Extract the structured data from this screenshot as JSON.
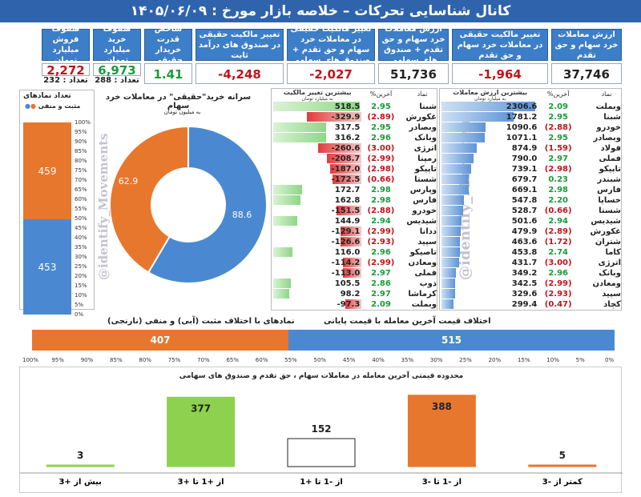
{
  "title": "کانال شناسایی تحرکات   –   خلاصه بازار مورخ : ۱۴۰۵/۰۶/۰۹",
  "kpis": [
    {
      "label": "ارزش معاملات خرد سهام و حق تقدم",
      "value": "37,746",
      "color": "#222"
    },
    {
      "label": "تغییر مالکیت حقیقی در معاملات خرد سهام و حق تقدم",
      "value": "-1,964",
      "color": "#c0141b"
    },
    {
      "label": "ارزش معاملات خرد سهام و حق تقدم + صندوق های سهامی",
      "value": "51,736",
      "color": "#222"
    },
    {
      "label": "تغییر مالکیت حقیقی در معاملات خرد سهام و حق تقدم + صندوق های سهامی",
      "value": "-2,027",
      "color": "#c0141b"
    },
    {
      "label": "تغییر مالکیت حقیقی در صندوق های درآمد ثابت",
      "value": "-4,248",
      "color": "#c0141b"
    },
    {
      "label": "شاخص قدرت خریدار حقیقی",
      "value": "1.41",
      "color": "#1a9a3a"
    },
    {
      "label": "صفوف خرید میلیارد تومان",
      "value": "6,973",
      "color": "#1a9a3a",
      "sub": "تعداد : 288"
    },
    {
      "label": "صفوف فروش میلیارد تومان",
      "value": "2,272",
      "color": "#c0141b",
      "sub": "تعداد : 232"
    }
  ],
  "count_box": {
    "title": "تعداد نمادهای",
    "legend": "مثبت و منفی",
    "axis": [
      "100%",
      "95%",
      "90%",
      "85%",
      "80%",
      "75%",
      "70%",
      "65%",
      "60%",
      "55%",
      "50%",
      "45%",
      "40%",
      "35%",
      "30%",
      "25%",
      "20%",
      "15%",
      "10%",
      "5%",
      "0%"
    ],
    "negative": 459,
    "positive": 453
  },
  "donut": {
    "title": "سرانه خرید\"حقیقی\" در معاملات خرد سهام",
    "subtitle": "به میلیون تومان",
    "blue_value": 88.6,
    "orange_value": 62.9
  },
  "watermark": "@identify_Movements",
  "table_ownership": {
    "header_name": "نماد",
    "header_pct": "%آخرین",
    "header_val": "بیشترین تغییر مالکیت",
    "header_unit": "به میلیارد تومان",
    "rows": [
      {
        "name": "شبنا",
        "pct": "2.95",
        "val": 518.5
      },
      {
        "name": "غکورش",
        "pct": "(2.89)",
        "val": -329.9
      },
      {
        "name": "وبصادر",
        "pct": "2.95",
        "val": 317.5
      },
      {
        "name": "وبانک",
        "pct": "2.96",
        "val": 316.2
      },
      {
        "name": "اترژی",
        "pct": "(3.00)",
        "val": -260.6
      },
      {
        "name": "رمپنا",
        "pct": "(2.99)",
        "val": -208.7
      },
      {
        "name": "تاپیکو",
        "pct": "(2.98)",
        "val": -187.0
      },
      {
        "name": "شستا",
        "pct": "(0.66)",
        "val": -172.5
      },
      {
        "name": "وپارس",
        "pct": "2.98",
        "val": 172.7
      },
      {
        "name": "فارس",
        "pct": "2.98",
        "val": 162.8
      },
      {
        "name": "خودرو",
        "pct": "(2.88)",
        "val": -151.5
      },
      {
        "name": "شیدیس",
        "pct": "2.94",
        "val": 144.9
      },
      {
        "name": "ددانا",
        "pct": "(2.99)",
        "val": -129.1
      },
      {
        "name": "سپید",
        "pct": "(2.93)",
        "val": -126.6
      },
      {
        "name": "تاصیکو",
        "pct": "2.96",
        "val": 116.0
      },
      {
        "name": "ومعادن",
        "pct": "(2.99)",
        "val": -114.2
      },
      {
        "name": "فملی",
        "pct": "2.97",
        "val": -113.0
      },
      {
        "name": "ذوب",
        "pct": "2.86",
        "val": 105.5
      },
      {
        "name": "کرماشا",
        "pct": "2.97",
        "val": 98.2
      },
      {
        "name": "وبملت",
        "pct": "2.09",
        "val": -97.3
      }
    ]
  },
  "table_value": {
    "header_name": "نماد",
    "header_pct": "%آخرین",
    "header_val": "بیشترین ارزش معاملات",
    "header_unit": "به میلیارد تومان",
    "rows": [
      {
        "name": "وبملت",
        "pct": "2.09",
        "val": 2306.6
      },
      {
        "name": "شبنا",
        "pct": "2.95",
        "val": 1781.2
      },
      {
        "name": "خودرو",
        "pct": "(2.88)",
        "val": 1090.6
      },
      {
        "name": "وبصادر",
        "pct": "2.95",
        "val": 1071.1
      },
      {
        "name": "فولاد",
        "pct": "(1.59)",
        "val": 874.9
      },
      {
        "name": "فملی",
        "pct": "2.97",
        "val": 790.0
      },
      {
        "name": "تاپیکو",
        "pct": "(2.98)",
        "val": 739.1
      },
      {
        "name": "شبندر",
        "pct": "0.23",
        "val": 679.7
      },
      {
        "name": "فارس",
        "pct": "2.98",
        "val": 669.1
      },
      {
        "name": "خساپا",
        "pct": "2.20",
        "val": 547.8
      },
      {
        "name": "شستا",
        "pct": "(0.66)",
        "val": 528.7
      },
      {
        "name": "شیدیس",
        "pct": "2.94",
        "val": 501.6
      },
      {
        "name": "غکورش",
        "pct": "(2.89)",
        "val": 479.9
      },
      {
        "name": "شتران",
        "pct": "(1.72)",
        "val": 463.6
      },
      {
        "name": "کاما",
        "pct": "2.74",
        "val": 453.8
      },
      {
        "name": "اترژی",
        "pct": "(3.00)",
        "val": 431.7
      },
      {
        "name": "وبانک",
        "pct": "2.96",
        "val": 349.2
      },
      {
        "name": "ومعادن",
        "pct": "(2.99)",
        "val": 342.5
      },
      {
        "name": "سپید",
        "pct": "(2.93)",
        "val": 329.6
      },
      {
        "name": "کچاد",
        "pct": "(0.47)",
        "val": 299.4
      }
    ]
  },
  "diff_bar": {
    "title": "اختلاف قیمت آخرین معامله با قیمت پایانی",
    "subtitle": "نمادهای با اختلاف مثبت (آبی) و منفی (نارنجی)",
    "orange_value": 407,
    "blue_value": 515,
    "axis": [
      "100%",
      "95%",
      "90%",
      "85%",
      "80%",
      "75%",
      "70%",
      "65%",
      "60%",
      "55%",
      "50%",
      "45%",
      "40%",
      "35%",
      "30%",
      "25%",
      "20%",
      "15%",
      "10%",
      "5%",
      "0%"
    ]
  },
  "chart_data": {
    "type": "bar",
    "title": "محدوده قیمتی آخرین معامله در  معاملات سهام ، حق تقدم و صندوق های سهامی",
    "categories": [
      "کمتر از -3",
      "از -1 تا -3",
      "از -1 تا +1",
      "از +1 تا +3",
      "بیش از +3"
    ],
    "values": [
      5,
      388,
      152,
      377,
      3
    ],
    "colors": [
      "#e8772e",
      "#e8772e",
      "#ffffff",
      "#8dd14f",
      "#8dd14f"
    ]
  },
  "colors": {
    "blue": "#4a89d2",
    "orange": "#e8772e",
    "green": "#8dd14f",
    "red": "#c0141b"
  }
}
